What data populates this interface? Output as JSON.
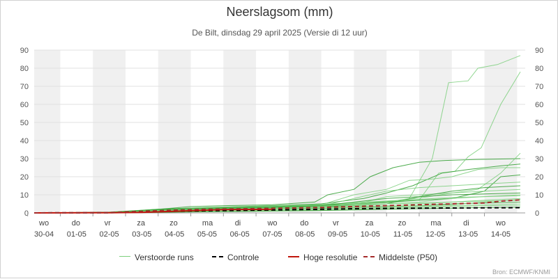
{
  "header": {
    "title": "Neerslagsom (mm)",
    "subtitle": "De Bilt, dinsdag 29 april 2025 (Versie di 12 uur)"
  },
  "credit": "Bron: ECMWF/KNMI",
  "colors": {
    "ensemble": "#2e9e2e",
    "ensemble_light": "#7ccf7c",
    "control": "#000000",
    "high_res": "#c0150b",
    "median": "#a52a2a",
    "weekend_band": "#f0f0f0",
    "grid": "#e0e0e0"
  },
  "chart_data": {
    "type": "line",
    "title": "Neerslagsom (mm)",
    "subtitle": "De Bilt, dinsdag 29 april 2025 (Versie di 12 uur)",
    "x_unit": "days from 30-04 00 UTC",
    "xlim": [
      -0.3,
      14.75
    ],
    "ylim": [
      0,
      90
    ],
    "y_ticks": [
      0,
      10,
      20,
      30,
      40,
      50,
      60,
      70,
      80,
      90
    ],
    "grid": true,
    "legend_position": "bottom",
    "x_tick_labels": [
      {
        "day": "wo",
        "date": "30-04"
      },
      {
        "day": "do",
        "date": "01-05"
      },
      {
        "day": "vr",
        "date": "02-05"
      },
      {
        "day": "za",
        "date": "03-05"
      },
      {
        "day": "zo",
        "date": "04-05"
      },
      {
        "day": "ma",
        "date": "05-05"
      },
      {
        "day": "di",
        "date": "06-05"
      },
      {
        "day": "wo",
        "date": "07-05"
      },
      {
        "day": "do",
        "date": "08-05"
      },
      {
        "day": "vr",
        "date": "09-05"
      },
      {
        "day": "za",
        "date": "10-05"
      },
      {
        "day": "zo",
        "date": "11-05"
      },
      {
        "day": "ma",
        "date": "12-05"
      },
      {
        "day": "di",
        "date": "13-05"
      },
      {
        "day": "wo",
        "date": "14-05"
      }
    ],
    "shaded_day_bands": [
      0,
      2,
      4,
      6,
      8,
      10,
      12,
      14
    ],
    "legend": [
      {
        "label": "Verstoorde runs",
        "style": "solid-thin",
        "color": "#7ccf7c"
      },
      {
        "label": "Controle",
        "style": "dashed",
        "color": "#000000"
      },
      {
        "label": "Hoge resolutie",
        "style": "solid-thick",
        "color": "#c0150b"
      },
      {
        "label": "Middelste (P50)",
        "style": "dashed",
        "color": "#a52a2a"
      }
    ],
    "ensemble_members": [
      {
        "x": [
          -0.3,
          2.0,
          3.5,
          4.5,
          5.5,
          7.0,
          8.3,
          8.7,
          9.5,
          10.0,
          10.7,
          11.5,
          12.3,
          13.2,
          14.6
        ],
        "y": [
          0,
          0.3,
          2.0,
          3.5,
          4.0,
          4.5,
          6.0,
          10.0,
          13.0,
          20.0,
          25.0,
          28.0,
          29.0,
          29.5,
          30.0
        ]
      },
      {
        "x": [
          -0.3,
          2.0,
          3.5,
          5.0,
          7.5,
          8.8,
          9.8,
          10.5,
          11.2,
          11.9,
          12.4,
          13.0,
          13.3,
          13.9,
          14.6
        ],
        "y": [
          0,
          0.5,
          2.0,
          3.0,
          4.0,
          5.0,
          5.5,
          6.0,
          8.0,
          30.0,
          72.0,
          73.0,
          80.0,
          82.0,
          87.0
        ]
      },
      {
        "x": [
          -0.3,
          2.0,
          3.5,
          5.0,
          7.5,
          8.8,
          9.8,
          10.8,
          11.5,
          12.1,
          12.6,
          13.0,
          13.4,
          14.0,
          14.6
        ],
        "y": [
          0,
          0.4,
          1.8,
          3.0,
          4.0,
          4.5,
          5.0,
          6.0,
          7.0,
          22.0,
          23.0,
          31.0,
          36.0,
          60.0,
          78.0
        ]
      },
      {
        "x": [
          -0.3,
          2.0,
          3.5,
          5.0,
          7.0,
          8.5,
          9.8,
          10.5,
          11.3,
          12.2,
          13.0,
          14.0,
          14.6
        ],
        "y": [
          0,
          0.3,
          2.0,
          3.0,
          4.0,
          5.0,
          8.0,
          11.0,
          15.0,
          22.0,
          24.0,
          26.0,
          27.0
        ]
      },
      {
        "x": [
          -0.3,
          2.0,
          3.5,
          5.0,
          7.0,
          8.5,
          9.5,
          10.5,
          11.2,
          11.8,
          12.5,
          13.3,
          14.0,
          14.6
        ],
        "y": [
          0,
          0.2,
          1.5,
          2.5,
          3.5,
          4.5,
          10.0,
          13.0,
          18.0,
          18.5,
          20.0,
          24.0,
          25.0,
          25.0
        ]
      },
      {
        "x": [
          -0.3,
          2.0,
          3.5,
          5.0,
          7.0,
          8.5,
          9.8,
          11.0,
          11.8,
          12.5,
          13.3,
          14.0,
          14.6
        ],
        "y": [
          0,
          0.3,
          1.8,
          2.8,
          3.8,
          4.5,
          6.0,
          7.0,
          9.0,
          11.0,
          13.0,
          22.0,
          33.0
        ]
      },
      {
        "x": [
          -0.3,
          2.0,
          3.5,
          5.0,
          7.0,
          8.5,
          9.5,
          10.5,
          11.5,
          12.5,
          13.5,
          14.0,
          14.6
        ],
        "y": [
          0,
          0.3,
          1.5,
          2.5,
          3.5,
          4.0,
          5.0,
          6.0,
          7.0,
          8.0,
          12.0,
          20.0,
          21.0
        ]
      },
      {
        "x": [
          -0.3,
          2.0,
          3.5,
          5.0,
          7.0,
          8.5,
          9.5,
          10.5,
          11.5,
          12.5,
          13.5,
          14.6
        ],
        "y": [
          0,
          0.2,
          1.2,
          2.0,
          3.0,
          3.8,
          8.0,
          12.0,
          14.0,
          15.0,
          16.0,
          17.0
        ]
      },
      {
        "x": [
          -0.3,
          2.0,
          3.5,
          5.0,
          7.0,
          8.5,
          9.5,
          10.5,
          11.5,
          12.5,
          13.5,
          14.6
        ],
        "y": [
          0,
          0.3,
          1.5,
          2.5,
          3.0,
          3.5,
          4.5,
          9.0,
          10.0,
          11.0,
          12.0,
          13.0
        ]
      },
      {
        "x": [
          -0.3,
          2.0,
          3.5,
          5.0,
          7.0,
          8.5,
          9.5,
          10.5,
          11.5,
          12.5,
          13.5,
          14.6
        ],
        "y": [
          0,
          0.2,
          1.0,
          2.0,
          3.0,
          3.5,
          4.0,
          5.0,
          9.0,
          10.0,
          10.5,
          11.0
        ]
      },
      {
        "x": [
          -0.3,
          2.0,
          3.5,
          5.0,
          7.0,
          8.5,
          9.5,
          10.5,
          11.5,
          12.5,
          13.5,
          14.6
        ],
        "y": [
          0,
          0.2,
          1.0,
          1.8,
          2.5,
          3.0,
          4.0,
          5.0,
          6.0,
          8.0,
          9.0,
          10.0
        ]
      },
      {
        "x": [
          -0.3,
          2.0,
          3.5,
          5.0,
          7.0,
          8.5,
          9.5,
          10.5,
          11.5,
          12.5,
          13.5,
          14.6
        ],
        "y": [
          0,
          0.2,
          1.0,
          1.5,
          2.2,
          3.0,
          3.5,
          4.0,
          5.0,
          6.0,
          7.0,
          8.0
        ]
      },
      {
        "x": [
          -0.3,
          2.0,
          3.5,
          5.0,
          7.0,
          8.5,
          9.5,
          10.5,
          11.5,
          12.5,
          13.5,
          14.6
        ],
        "y": [
          0,
          0.1,
          0.8,
          1.5,
          2.0,
          2.5,
          3.0,
          3.5,
          4.0,
          5.0,
          5.5,
          6.0
        ]
      },
      {
        "x": [
          -0.3,
          2.0,
          3.5,
          5.0,
          7.0,
          8.5,
          9.5,
          10.5,
          11.5,
          12.5,
          13.5,
          14.6
        ],
        "y": [
          0,
          0.1,
          0.5,
          1.0,
          1.5,
          2.0,
          2.5,
          3.0,
          3.5,
          4.0,
          4.5,
          5.0
        ]
      },
      {
        "x": [
          -0.3,
          2.0,
          3.5,
          5.0,
          7.0,
          8.5,
          9.5,
          10.5,
          11.5,
          12.5,
          13.5,
          14.6
        ],
        "y": [
          0,
          0.1,
          0.4,
          0.8,
          1.2,
          1.6,
          2.0,
          2.5,
          3.0,
          3.5,
          4.0,
          4.2
        ]
      },
      {
        "x": [
          -0.3,
          2.0,
          3.5,
          5.0,
          7.0,
          8.5,
          9.5,
          10.5,
          11.5,
          12.5,
          13.5,
          14.6
        ],
        "y": [
          0,
          0.1,
          0.3,
          0.6,
          1.0,
          1.3,
          1.6,
          2.0,
          2.3,
          2.6,
          3.0,
          3.2
        ]
      },
      {
        "x": [
          -0.3,
          2.0,
          3.5,
          5.0,
          7.0,
          8.5,
          9.5,
          10.5,
          11.5,
          12.5,
          13.5,
          14.6
        ],
        "y": [
          0,
          0.2,
          1.5,
          2.5,
          3.5,
          4.0,
          4.5,
          5.0,
          5.5,
          6.0,
          6.5,
          7.0
        ]
      },
      {
        "x": [
          -0.3,
          2.0,
          3.5,
          5.0,
          7.0,
          8.5,
          9.5,
          10.5,
          11.5,
          12.5,
          13.5,
          14.6
        ],
        "y": [
          0,
          0.2,
          1.2,
          2.0,
          2.8,
          3.5,
          5.0,
          6.5,
          7.5,
          8.5,
          9.0,
          9.5
        ]
      },
      {
        "x": [
          -0.3,
          2.0,
          3.5,
          5.0,
          7.0,
          8.5,
          9.5,
          10.5,
          11.5,
          12.5,
          13.5,
          14.6
        ],
        "y": [
          0,
          0.3,
          1.8,
          2.5,
          3.2,
          4.0,
          6.0,
          8.0,
          9.0,
          12.0,
          14.0,
          15.0
        ]
      },
      {
        "x": [
          -0.3,
          2.0,
          3.5,
          5.0,
          7.0,
          8.5,
          9.5,
          10.5,
          11.5,
          12.5,
          13.5,
          14.6
        ],
        "y": [
          0,
          0.2,
          1.0,
          1.5,
          2.0,
          2.5,
          3.0,
          3.5,
          4.0,
          4.5,
          6.0,
          7.5
        ]
      }
    ],
    "series": [
      {
        "name": "Controle",
        "x": [
          -0.3,
          2.0,
          3.5,
          5.0,
          7.0,
          8.5,
          9.5,
          10.5,
          11.5,
          12.5,
          13.5,
          14.6
        ],
        "y": [
          0,
          0.1,
          0.8,
          1.2,
          1.6,
          2.0,
          2.3,
          2.5,
          2.6,
          2.7,
          2.8,
          2.9
        ]
      },
      {
        "name": "Hoge resolutie",
        "x": [
          -0.3,
          2.0,
          3.0,
          4.5,
          5.5,
          7.0
        ],
        "y": [
          0,
          0.1,
          0.3,
          1.2,
          1.8,
          2.0
        ]
      },
      {
        "name": "Middelste (P50)",
        "x": [
          -0.3,
          2.0,
          3.5,
          5.0,
          7.0,
          8.5,
          9.5,
          10.5,
          11.5,
          12.5,
          13.5,
          14.0,
          14.6
        ],
        "y": [
          0,
          0.2,
          1.2,
          2.0,
          2.5,
          3.0,
          3.5,
          4.0,
          4.5,
          5.0,
          5.5,
          6.5,
          7.2
        ]
      }
    ]
  }
}
